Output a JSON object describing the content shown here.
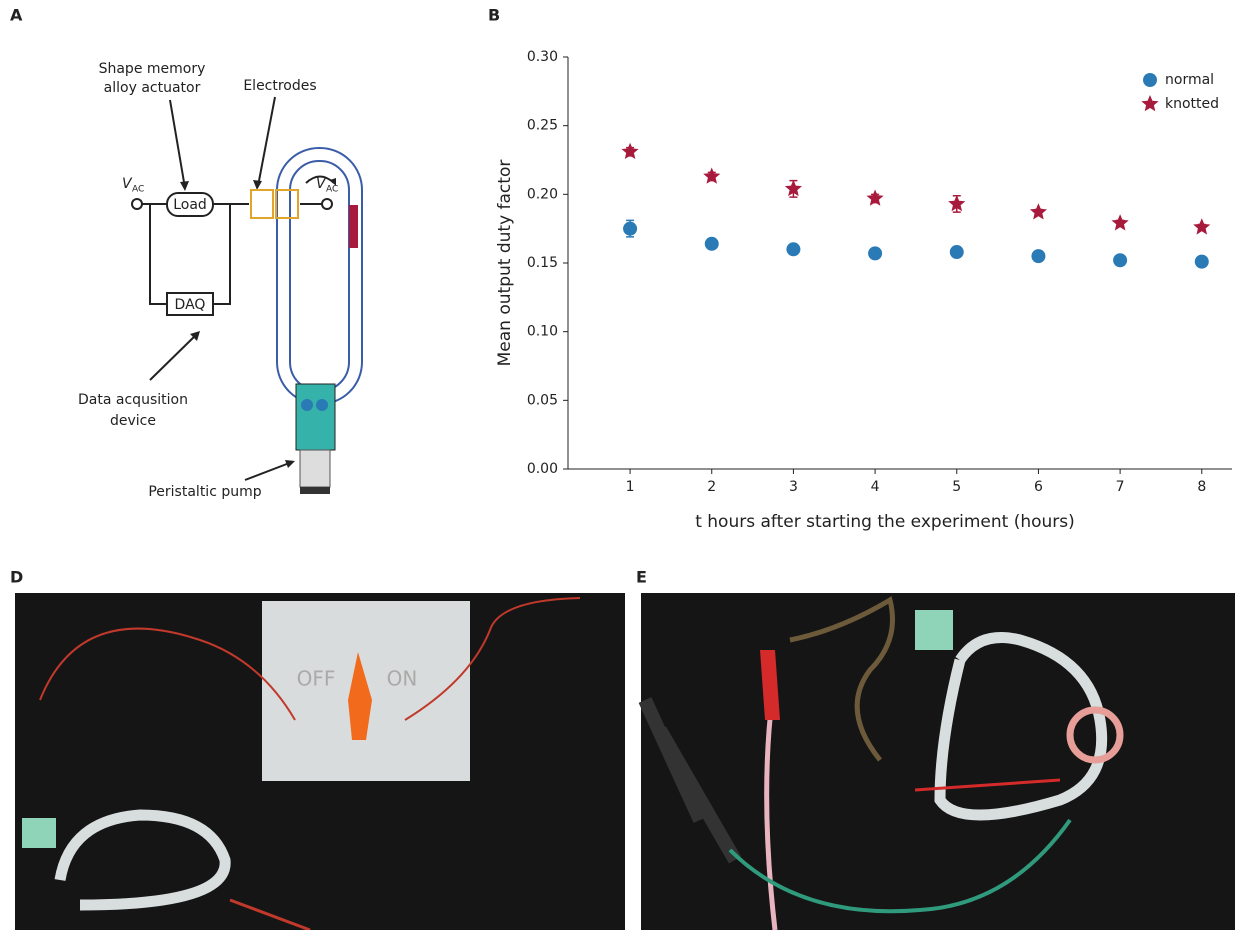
{
  "panel_labels": [
    "A",
    "B",
    "D",
    "E"
  ],
  "diagram": {
    "actuator_label": [
      "Shape memory",
      "alloy actuator"
    ],
    "electrodes_label": "Electrodes",
    "source_label": "V",
    "source_subscript": "AC",
    "load": "Load",
    "daq": "DAQ",
    "daq_label": [
      "Data acqusition",
      "device"
    ],
    "pump_label": "Peristaltic pump"
  },
  "photo_d": {
    "off": "OFF",
    "on": "ON"
  },
  "chart_data": {
    "type": "scatter",
    "xlabel": "t hours after starting the experiment (hours)",
    "ylabel": "Mean output duty factor",
    "x": [
      1,
      2,
      3,
      4,
      5,
      6,
      7,
      8
    ],
    "series": [
      {
        "name": "normal",
        "color": "#2a7ab6",
        "marker": "circle",
        "values": [
          0.175,
          0.164,
          0.16,
          0.157,
          0.158,
          0.155,
          0.152,
          0.151
        ],
        "errors": [
          0.006,
          0.002,
          0.003,
          0.002,
          0.002,
          0.002,
          0.002,
          0.002
        ]
      },
      {
        "name": "knotted",
        "color": "#a81a3c",
        "marker": "star",
        "values": [
          0.231,
          0.213,
          0.204,
          0.197,
          0.193,
          0.187,
          0.179,
          0.176
        ],
        "errors": [
          0.003,
          0.003,
          0.006,
          0.003,
          0.006,
          0.002,
          0.002,
          0.002
        ]
      }
    ],
    "xlim": [
      0.24,
      8.37
    ],
    "ylim": [
      0,
      0.3
    ],
    "xticks": [
      1,
      2,
      3,
      4,
      5,
      6,
      7,
      8
    ],
    "yticks": [
      {
        "value": 0,
        "label": "0.00"
      },
      {
        "value": 0.05,
        "label": "0.05"
      },
      {
        "value": 0.1,
        "label": "0.10"
      },
      {
        "value": 0.15,
        "label": "0.15"
      },
      {
        "value": 0.2,
        "label": "0.20"
      },
      {
        "value": 0.25,
        "label": "0.25"
      },
      {
        "value": 0.3,
        "label": "0.30"
      }
    ],
    "legend": "upper right"
  }
}
